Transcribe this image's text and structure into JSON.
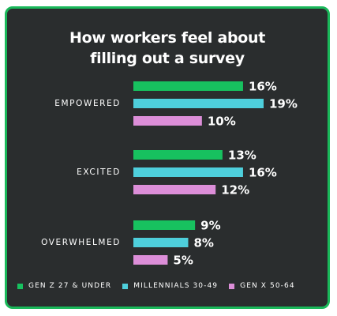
{
  "chart_data": {
    "type": "bar",
    "orientation": "horizontal",
    "title_lines": [
      "How workers feel about",
      "filling out a survey"
    ],
    "categories": [
      "EMPOWERED",
      "EXCITED",
      "OVERWHELMED"
    ],
    "series": [
      {
        "name": "GEN Z 27 & UNDER",
        "color": "#17c15f",
        "values": [
          16,
          13,
          9
        ]
      },
      {
        "name": "MILLENNIALS 30-49",
        "color": "#4ecfdc",
        "values": [
          19,
          16,
          8
        ]
      },
      {
        "name": "GEN X 50-64",
        "color": "#dc8ed8",
        "values": [
          10,
          12,
          5
        ]
      }
    ],
    "value_suffix": "%",
    "xlim": [
      0,
      19
    ],
    "grid": false,
    "legend_position": "bottom"
  }
}
